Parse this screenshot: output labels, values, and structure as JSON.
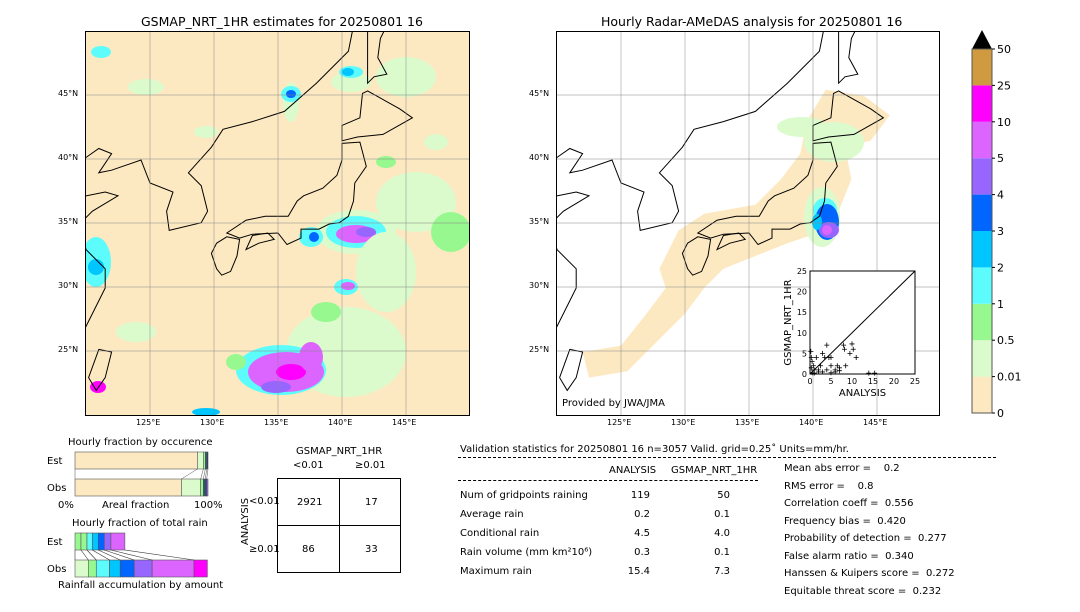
{
  "left_map": {
    "title": "GSMAP_NRT_1HR estimates for 20250801 16"
  },
  "right_map": {
    "title": "Hourly Radar-AMeDAS analysis for 20250801 16",
    "credit": "Provided by JWA/JMA"
  },
  "lon_ticks": [
    "125°E",
    "130°E",
    "135°E",
    "140°E",
    "145°E"
  ],
  "lat_ticks": [
    "45°N",
    "40°N",
    "35°N",
    "30°N",
    "25°N"
  ],
  "colors": {
    "land_bg": "#fde9c1",
    "0.01": "#dbfbcc",
    "0.5": "#98f890",
    "1": "#5dfcfc",
    "2": "#00c6ff",
    "3": "#0066ff",
    "4": "#9666ff",
    "5": "#dc64ff",
    "10": "#ff00ff",
    "25": "#d09a40"
  },
  "colorbar": {
    "labels": [
      "0",
      "0.01",
      "0.5",
      "1",
      "2",
      "3",
      "4",
      "5",
      "10",
      "25",
      "50"
    ],
    "colors": [
      "#fde9c1",
      "#dbfbcc",
      "#98f890",
      "#5dfcfc",
      "#00c6ff",
      "#0066ff",
      "#9666ff",
      "#dc64ff",
      "#ff00ff",
      "#d09a40"
    ],
    "extend": "max"
  },
  "chart_data": [
    {
      "type": "scatter",
      "xlabel": "ANALYSIS",
      "ylabel": "GSMAP_NRT_1HR",
      "xlim": [
        0,
        25
      ],
      "ylim": [
        0,
        25
      ],
      "xticks": [
        "0",
        "5",
        "10",
        "15",
        "20",
        "25"
      ],
      "yticks": [
        "0",
        "5",
        "10",
        "15",
        "20",
        "25"
      ],
      "points": [
        [
          0.2,
          5.5
        ],
        [
          0.3,
          4
        ],
        [
          0.5,
          3
        ],
        [
          0.8,
          2
        ],
        [
          1,
          1
        ],
        [
          1.5,
          4
        ],
        [
          2,
          0.5
        ],
        [
          3,
          5
        ],
        [
          3.5,
          4
        ],
        [
          4,
          7
        ],
        [
          4.5,
          4
        ],
        [
          5,
          4
        ],
        [
          5,
          2
        ],
        [
          6,
          1
        ],
        [
          6.5,
          2
        ],
        [
          7,
          1.5
        ],
        [
          8,
          7
        ],
        [
          8.2,
          6
        ],
        [
          9.5,
          5
        ],
        [
          10,
          7.3
        ],
        [
          10.3,
          6
        ],
        [
          11,
          4
        ],
        [
          8.5,
          2
        ],
        [
          14,
          0.2
        ],
        [
          15.4,
          0.2
        ],
        [
          2,
          1
        ],
        [
          3,
          0.5
        ],
        [
          4,
          1
        ],
        [
          5,
          0.3
        ],
        [
          6,
          0.5
        ],
        [
          0.5,
          0.3
        ],
        [
          1,
          0.2
        ],
        [
          0.3,
          1.5
        ],
        [
          7,
          0.8
        ],
        [
          2.5,
          2
        ]
      ]
    },
    {
      "type": "bar",
      "title": "Hourly fraction by occurence",
      "categories": [
        "Est",
        "Obs"
      ],
      "xlabel": "Areal fraction",
      "xticks": [
        "0%",
        "100%"
      ],
      "series": [
        [
          0.92,
          0.045,
          0.015,
          0.01,
          0.01
        ],
        [
          0.8,
          0.145,
          0.02,
          0.015,
          0.01,
          0.01
        ]
      ]
    },
    {
      "type": "bar",
      "title": "Hourly fraction of total rain",
      "categories": [
        "Est",
        "Obs"
      ],
      "xlabel": "Rainfall accumulation by amount",
      "series": [
        [
          0.045,
          0.045,
          0.04,
          0.045,
          0.045,
          0.05,
          0.105
        ],
        [
          0.1,
          0.06,
          0.1,
          0.08,
          0.105,
          0.135,
          0.315,
          0.1
        ]
      ]
    }
  ],
  "contingency": {
    "title": "GSMAP_NRT_1HR",
    "col_labels": [
      "<0.01",
      "≥0.01"
    ],
    "row_title": "ANALYSIS",
    "row_labels": [
      "<0.01",
      "≥0.01"
    ],
    "cells": [
      [
        "2921",
        "17"
      ],
      [
        "86",
        "33"
      ]
    ]
  },
  "stats": {
    "header": "Validation statistics for 20250801 16  n=3057 Valid. grid=0.25˚ Units=mm/hr.",
    "col_headers": [
      "ANALYSIS",
      "GSMAP_NRT_1HR"
    ],
    "rows": [
      {
        "label": "Num of gridpoints raining",
        "a": "119",
        "g": "50"
      },
      {
        "label": "Average rain",
        "a": "0.2",
        "g": "0.1"
      },
      {
        "label": "Conditional rain",
        "a": "4.5",
        "g": "4.0"
      },
      {
        "label": "Rain volume (mm km²10⁶)",
        "a": "0.3",
        "g": "0.1"
      },
      {
        "label": "Maximum rain",
        "a": "15.4",
        "g": "7.3"
      }
    ],
    "scores": [
      "Mean abs error =    0.2",
      "RMS error =    0.8",
      "Correlation coeff =  0.556",
      "Frequency bias =  0.420",
      "Probability of detection =  0.277",
      "False alarm ratio =  0.340",
      "Hanssen & Kuipers score =  0.272",
      "Equitable threat score =  0.232"
    ]
  }
}
